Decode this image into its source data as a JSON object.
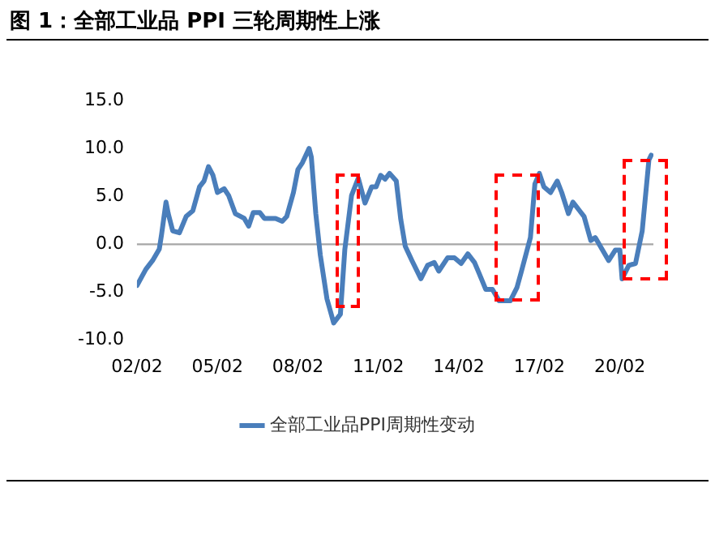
{
  "chart_data": {
    "type": "line",
    "title": "图 1：全部工业品 PPI 三轮周期性上涨",
    "x": [
      "2002-02",
      "2002-06",
      "2002-09",
      "2002-12",
      "2003-01",
      "2003-03",
      "2003-04",
      "2003-06",
      "2003-09",
      "2003-12",
      "2004-03",
      "2004-06",
      "2004-08",
      "2004-10",
      "2004-12",
      "2005-02",
      "2005-05",
      "2005-07",
      "2005-10",
      "2006-02",
      "2006-04",
      "2006-06",
      "2006-09",
      "2006-11",
      "2007-04",
      "2007-07",
      "2007-09",
      "2007-12",
      "2008-02",
      "2008-04",
      "2008-07",
      "2008-08",
      "2008-10",
      "2008-12",
      "2009-03",
      "2009-06",
      "2009-09",
      "2009-11",
      "2010-02",
      "2010-05",
      "2010-08",
      "2010-11",
      "2011-01",
      "2011-03",
      "2011-05",
      "2011-07",
      "2011-10",
      "2011-12",
      "2012-02",
      "2012-05",
      "2012-09",
      "2012-12",
      "2013-03",
      "2013-05",
      "2013-09",
      "2013-12",
      "2014-03",
      "2014-06",
      "2014-09",
      "2014-11",
      "2015-02",
      "2015-05",
      "2015-08",
      "2016-01",
      "2016-04",
      "2016-06",
      "2016-10",
      "2016-12",
      "2017-02",
      "2017-04",
      "2017-07",
      "2017-10",
      "2017-12",
      "2018-03",
      "2018-05",
      "2018-08",
      "2018-10",
      "2019-01",
      "2019-03",
      "2019-06",
      "2019-09",
      "2019-12",
      "2020-02",
      "2020-03",
      "2020-06",
      "2020-09",
      "2020-12",
      "2021-03",
      "2021-04"
    ],
    "series": [
      {
        "name": "全部工业品PPI周期性变动",
        "color": "#4a7ebb",
        "values": [
          -4.3,
          -2.6,
          -1.7,
          -0.5,
          1.0,
          4.4,
          3.2,
          1.4,
          1.2,
          2.9,
          3.5,
          6.0,
          6.6,
          8.1,
          7.2,
          5.4,
          5.8,
          5.1,
          3.2,
          2.7,
          1.9,
          3.3,
          3.3,
          2.7,
          2.7,
          2.4,
          2.9,
          5.4,
          7.8,
          8.5,
          10.0,
          9.1,
          3.2,
          -1.1,
          -5.7,
          -8.2,
          -7.3,
          -0.5,
          5.1,
          6.9,
          4.3,
          6.0,
          6.0,
          7.2,
          6.8,
          7.4,
          6.6,
          2.6,
          -0.2,
          -1.7,
          -3.6,
          -2.2,
          -1.9,
          -2.8,
          -1.4,
          -1.4,
          -2.0,
          -1.0,
          -1.9,
          -3.0,
          -4.7,
          -4.7,
          -5.9,
          -5.9,
          -4.5,
          -2.8,
          0.7,
          6.3,
          7.4,
          6.0,
          5.4,
          6.6,
          5.4,
          3.2,
          4.4,
          3.5,
          2.9,
          0.4,
          0.7,
          -0.5,
          -1.7,
          -0.6,
          -0.6,
          -3.6,
          -2.2,
          -2.0,
          1.4,
          8.8,
          9.3
        ]
      }
    ],
    "xlim": [
      "2002-02",
      "2021-05"
    ],
    "xticks": [
      {
        "value": "2002-02",
        "label": "02/02"
      },
      {
        "value": "2005-02",
        "label": "05/02"
      },
      {
        "value": "2008-02",
        "label": "08/02"
      },
      {
        "value": "2011-02",
        "label": "11/02"
      },
      {
        "value": "2014-02",
        "label": "14/02"
      },
      {
        "value": "2017-02",
        "label": "17/02"
      },
      {
        "value": "2020-02",
        "label": "20/02"
      }
    ],
    "ylim": [
      -10,
      15
    ],
    "yticks": [
      {
        "value": -10,
        "label": "-10.0"
      },
      {
        "value": -5,
        "label": "-5.0"
      },
      {
        "value": 0,
        "label": "0.0"
      },
      {
        "value": 5,
        "label": "5.0"
      },
      {
        "value": 10,
        "label": "10.0"
      },
      {
        "value": 15,
        "label": "15.0"
      }
    ],
    "ref_lines": [
      {
        "axis": "y",
        "value": 0,
        "color": "#a6a6a6"
      }
    ],
    "grid": false,
    "legend": "bottom",
    "marker": "none",
    "line_style": "solid"
  }
}
